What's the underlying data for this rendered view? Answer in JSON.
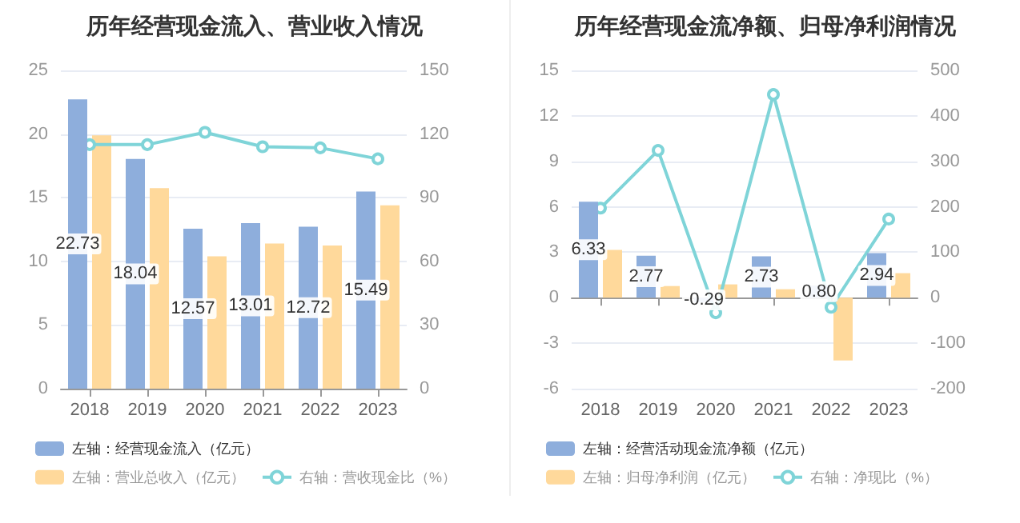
{
  "chart_data": [
    {
      "type": "bar",
      "title": "历年经营现金流入、营业收入情况",
      "categories": [
        "2018",
        "2019",
        "2020",
        "2021",
        "2022",
        "2023"
      ],
      "series": [
        {
          "name": "左轴：经营现金流入（亿元）",
          "color": "#8eaedc",
          "values": [
            22.73,
            18.04,
            12.57,
            13.01,
            12.72,
            15.49
          ],
          "value_labels": [
            "22.73",
            "18.04",
            "12.57",
            "13.01",
            "12.72",
            "15.49"
          ]
        },
        {
          "name": "左轴：营业总收入（亿元）",
          "color": "#ffd99b",
          "values": [
            19.9,
            15.75,
            10.4,
            11.4,
            11.25,
            14.4
          ]
        },
        {
          "name": "右轴：营收现金比（%）",
          "type": "line",
          "axis": "y2",
          "color": "#7fd4d8",
          "marker": "circle",
          "values": [
            115,
            115,
            120.8,
            114,
            113.5,
            108.3
          ]
        }
      ],
      "ylim": [
        0,
        25
      ],
      "yticks": [
        0,
        5,
        10,
        15,
        20,
        25
      ],
      "y2lim": [
        0,
        150
      ],
      "y2ticks": [
        0,
        30,
        60,
        90,
        120,
        150
      ],
      "grid": "y",
      "legend": "bottom"
    },
    {
      "type": "bar",
      "title": "历年经营现金流净额、归母净利润情况",
      "categories": [
        "2018",
        "2019",
        "2020",
        "2021",
        "2022",
        "2023"
      ],
      "series": [
        {
          "name": "左轴：经营活动现金流净额（亿元）",
          "color": "#8eaedc",
          "values": [
            6.33,
            2.77,
            -0.29,
            2.73,
            0.8,
            2.94
          ],
          "value_labels": [
            "6.33",
            "2.77",
            "-0.29",
            "2.73",
            "0.80",
            "2.94"
          ]
        },
        {
          "name": "左轴：归母净利润（亿元）",
          "color": "#ffd99b",
          "values": [
            3.16,
            0.77,
            0.88,
            0.56,
            -4.14,
            1.62
          ]
        },
        {
          "name": "右轴：净现比（%）",
          "type": "line",
          "axis": "y2",
          "color": "#7fd4d8",
          "marker": "circle",
          "values": [
            197,
            324,
            -33,
            447,
            -21,
            173
          ]
        }
      ],
      "ylim": [
        -6,
        15
      ],
      "yticks": [
        -6,
        -3,
        0,
        3,
        6,
        9,
        12,
        15
      ],
      "y2lim": [
        -200,
        500
      ],
      "y2ticks": [
        -200,
        -100,
        0,
        100,
        200,
        300,
        400,
        500
      ],
      "grid": "y",
      "legend": "bottom"
    }
  ]
}
